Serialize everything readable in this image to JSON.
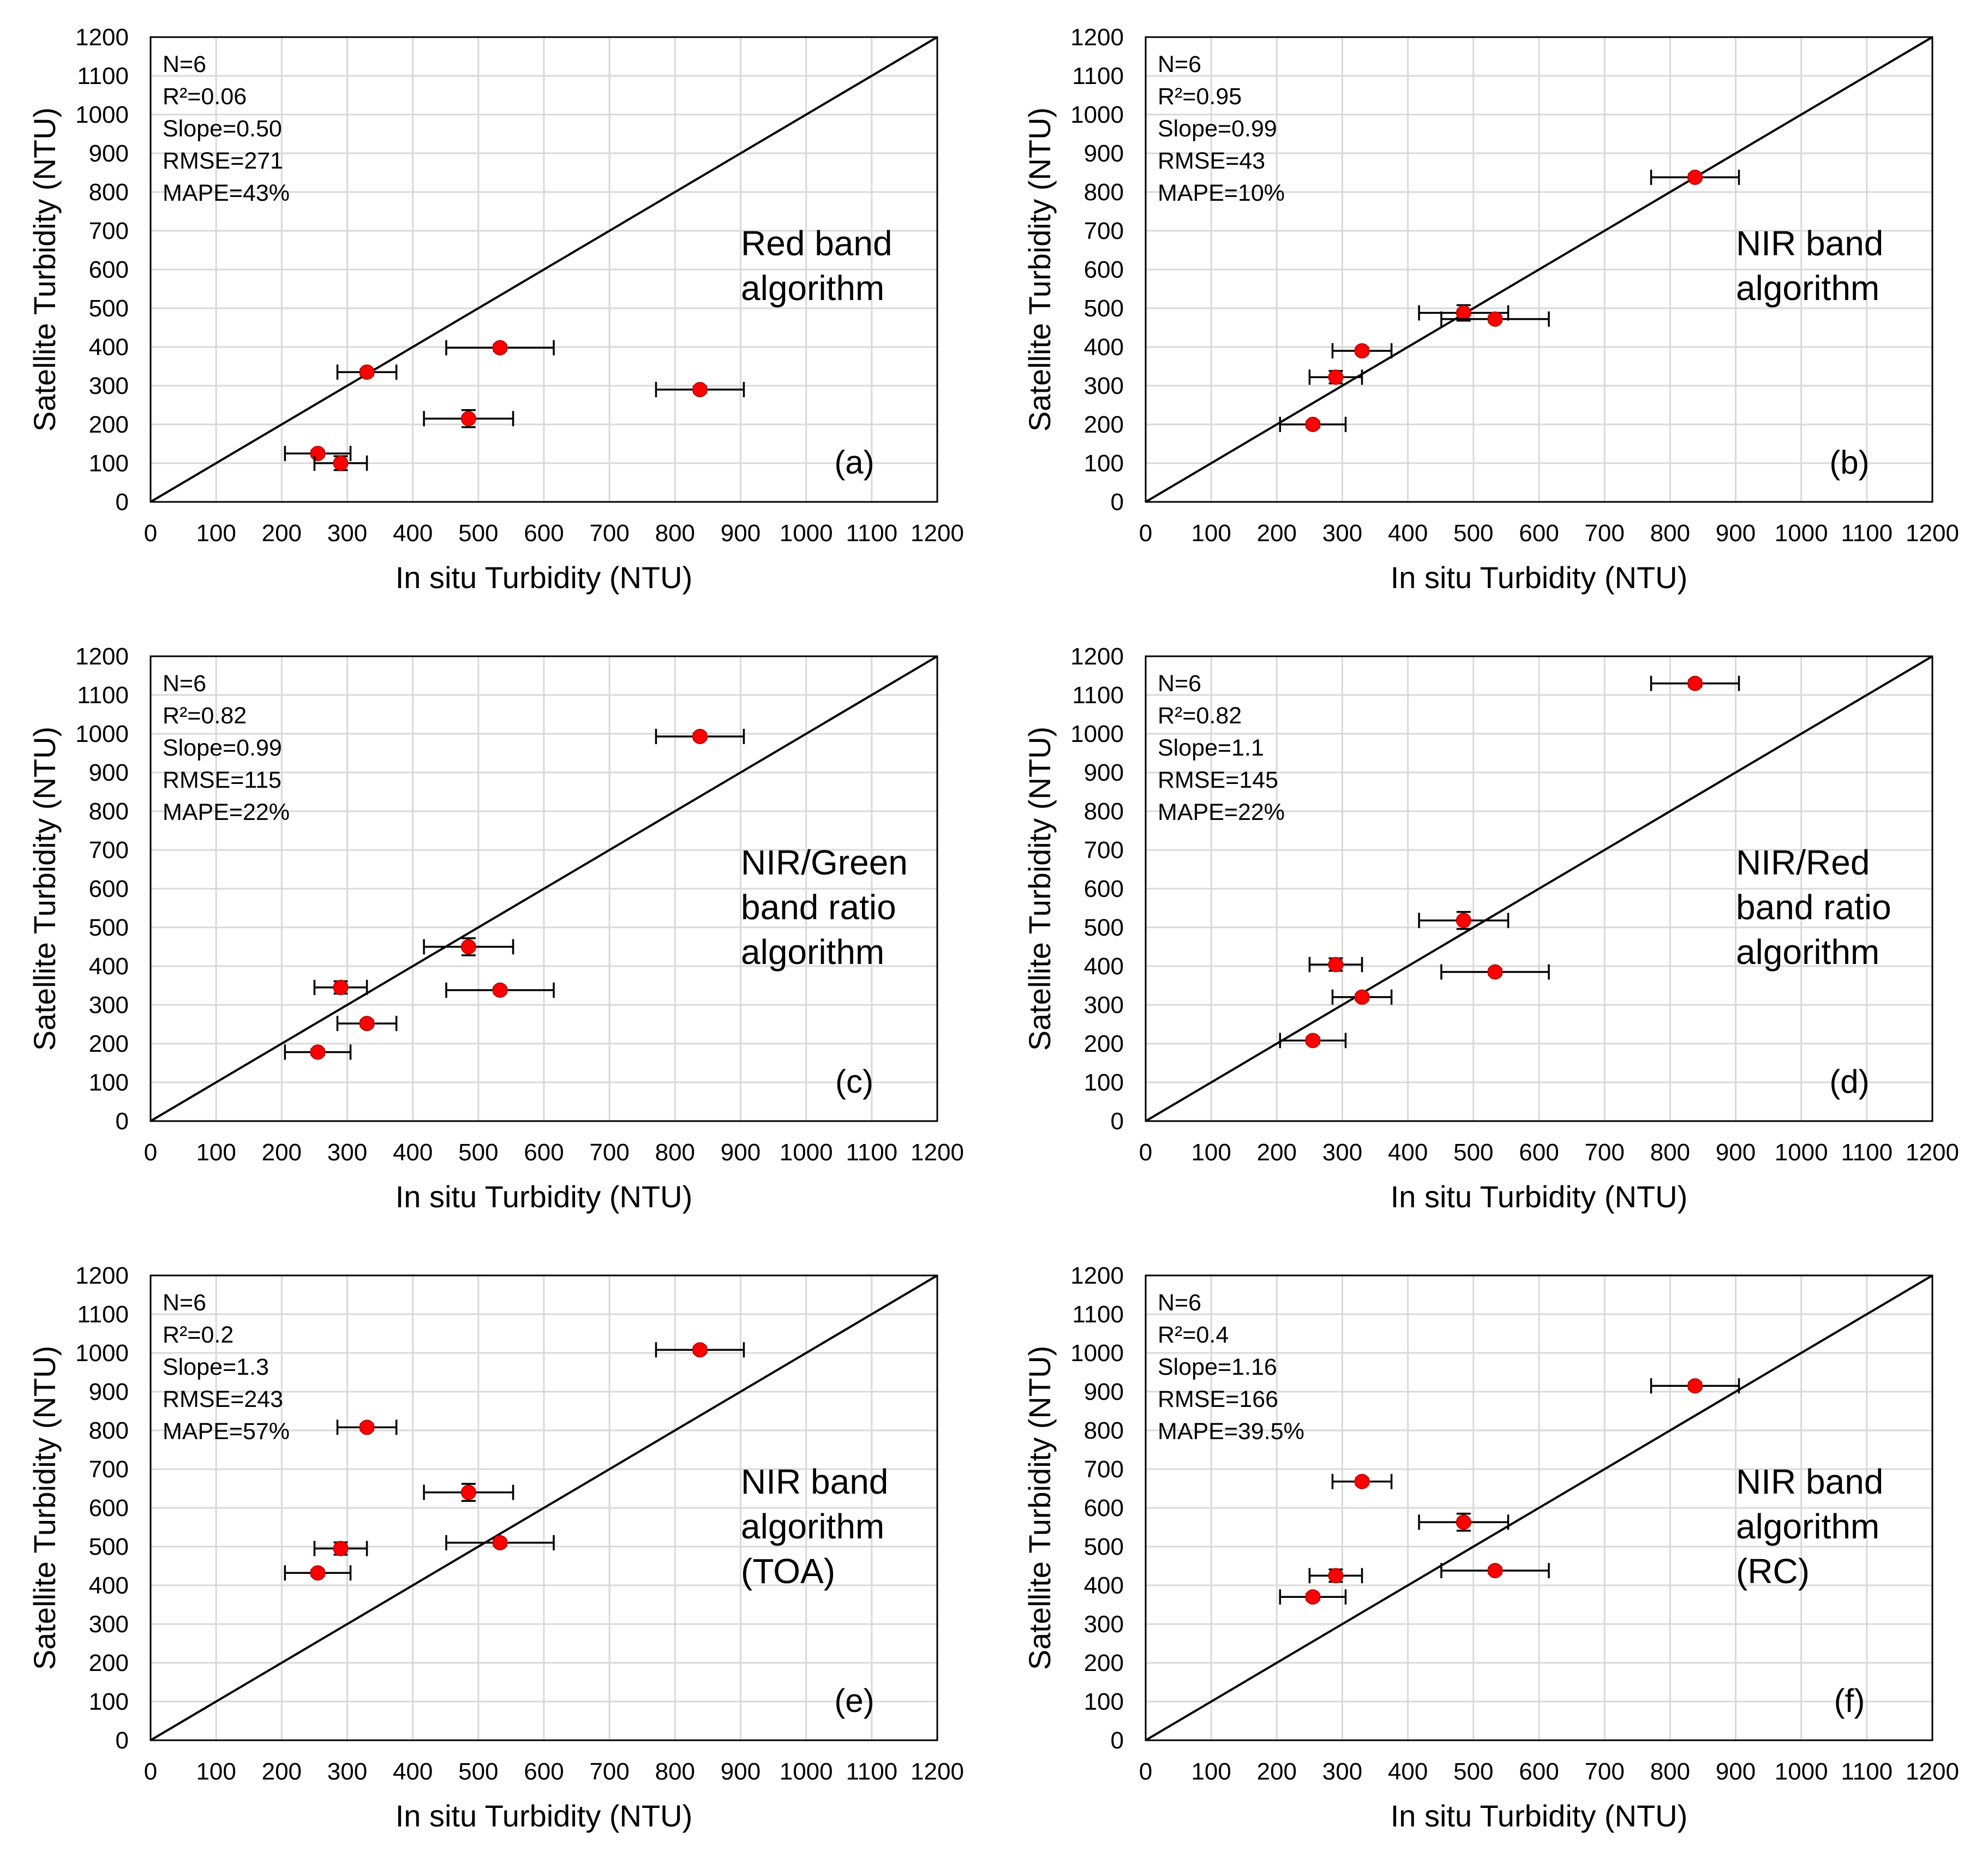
{
  "chart_data": [
    {
      "type": "scatter",
      "panel": "(a)",
      "xlabel": "In situ Turbidity (NTU)",
      "ylabel": "Satellite Turbidity (NTU)",
      "xlim": [
        0,
        1200
      ],
      "ylim": [
        0,
        1200
      ],
      "xticks": [
        0,
        100,
        200,
        300,
        400,
        500,
        600,
        700,
        800,
        900,
        1000,
        1100,
        1200
      ],
      "yticks": [
        0,
        100,
        200,
        300,
        400,
        500,
        600,
        700,
        800,
        900,
        1000,
        1100,
        1200
      ],
      "grid": true,
      "reference_line": "1:1",
      "stats": [
        "N=6",
        "R²=0.06",
        "Slope=0.50",
        "RMSE=271",
        "MAPE=43%"
      ],
      "label_lines": [
        "Red band",
        "algorithm"
      ],
      "points": [
        {
          "x": 255,
          "y": 125,
          "x_err": 50,
          "y_err": 8
        },
        {
          "x": 290,
          "y": 100,
          "x_err": 40,
          "y_err": 18
        },
        {
          "x": 330,
          "y": 335,
          "x_err": 45,
          "y_err": 8
        },
        {
          "x": 485,
          "y": 215,
          "x_err": 68,
          "y_err": 22
        },
        {
          "x": 533,
          "y": 398,
          "x_err": 82,
          "y_err": 8
        },
        {
          "x": 838,
          "y": 290,
          "x_err": 67,
          "y_err": 8
        }
      ]
    },
    {
      "type": "scatter",
      "panel": "(b)",
      "xlabel": "In situ Turbidity (NTU)",
      "ylabel": "Satellite Turbidity (NTU)",
      "xlim": [
        0,
        1200
      ],
      "ylim": [
        0,
        1200
      ],
      "xticks": [
        0,
        100,
        200,
        300,
        400,
        500,
        600,
        700,
        800,
        900,
        1000,
        1100,
        1200
      ],
      "yticks": [
        0,
        100,
        200,
        300,
        400,
        500,
        600,
        700,
        800,
        900,
        1000,
        1100,
        1200
      ],
      "grid": true,
      "reference_line": "1:1",
      "stats": [
        "N=6",
        "R²=0.95",
        "Slope=0.99",
        "RMSE=43",
        "MAPE=10%"
      ],
      "label_lines": [
        "NIR band",
        "algorithm"
      ],
      "points": [
        {
          "x": 255,
          "y": 200,
          "x_err": 50,
          "y_err": 8
        },
        {
          "x": 290,
          "y": 322,
          "x_err": 40,
          "y_err": 16
        },
        {
          "x": 330,
          "y": 390,
          "x_err": 45,
          "y_err": 8
        },
        {
          "x": 485,
          "y": 488,
          "x_err": 68,
          "y_err": 20
        },
        {
          "x": 533,
          "y": 472,
          "x_err": 82,
          "y_err": 8
        },
        {
          "x": 838,
          "y": 838,
          "x_err": 67,
          "y_err": 8
        }
      ]
    },
    {
      "type": "scatter",
      "panel": "(c)",
      "xlabel": "In situ Turbidity (NTU)",
      "ylabel": "Satellite Turbidity (NTU)",
      "xlim": [
        0,
        1200
      ],
      "ylim": [
        0,
        1200
      ],
      "xticks": [
        0,
        100,
        200,
        300,
        400,
        500,
        600,
        700,
        800,
        900,
        1000,
        1100,
        1200
      ],
      "yticks": [
        0,
        100,
        200,
        300,
        400,
        500,
        600,
        700,
        800,
        900,
        1000,
        1100,
        1200
      ],
      "grid": true,
      "reference_line": "1:1",
      "stats": [
        "N=6",
        "R²=0.82",
        "Slope=0.99",
        "RMSE=115",
        "MAPE=22%"
      ],
      "label_lines": [
        "NIR/Green",
        "band ratio",
        "algorithm"
      ],
      "points": [
        {
          "x": 255,
          "y": 178,
          "x_err": 50,
          "y_err": 8
        },
        {
          "x": 290,
          "y": 345,
          "x_err": 40,
          "y_err": 16
        },
        {
          "x": 330,
          "y": 252,
          "x_err": 45,
          "y_err": 8
        },
        {
          "x": 485,
          "y": 450,
          "x_err": 68,
          "y_err": 22
        },
        {
          "x": 533,
          "y": 338,
          "x_err": 82,
          "y_err": 8
        },
        {
          "x": 838,
          "y": 993,
          "x_err": 67,
          "y_err": 8
        }
      ]
    },
    {
      "type": "scatter",
      "panel": "(d)",
      "xlabel": "In situ Turbidity (NTU)",
      "ylabel": "Satellite Turbidity (NTU)",
      "xlim": [
        0,
        1200
      ],
      "ylim": [
        0,
        1200
      ],
      "xticks": [
        0,
        100,
        200,
        300,
        400,
        500,
        600,
        700,
        800,
        900,
        1000,
        1100,
        1200
      ],
      "yticks": [
        0,
        100,
        200,
        300,
        400,
        500,
        600,
        700,
        800,
        900,
        1000,
        1100,
        1200
      ],
      "grid": true,
      "reference_line": "1:1",
      "stats": [
        "N=6",
        "R²=0.82",
        "Slope=1.1",
        "RMSE=145",
        "MAPE=22%"
      ],
      "label_lines": [
        "NIR/Red",
        "band ratio",
        "algorithm"
      ],
      "points": [
        {
          "x": 255,
          "y": 208,
          "x_err": 50,
          "y_err": 8
        },
        {
          "x": 290,
          "y": 404,
          "x_err": 40,
          "y_err": 16
        },
        {
          "x": 330,
          "y": 320,
          "x_err": 45,
          "y_err": 8
        },
        {
          "x": 485,
          "y": 518,
          "x_err": 68,
          "y_err": 22
        },
        {
          "x": 533,
          "y": 385,
          "x_err": 82,
          "y_err": 8
        },
        {
          "x": 838,
          "y": 1130,
          "x_err": 67,
          "y_err": 8
        }
      ]
    },
    {
      "type": "scatter",
      "panel": "(e)",
      "xlabel": "In situ Turbidity (NTU)",
      "ylabel": "Satellite Turbidity (NTU)",
      "xlim": [
        0,
        1200
      ],
      "ylim": [
        0,
        1200
      ],
      "xticks": [
        0,
        100,
        200,
        300,
        400,
        500,
        600,
        700,
        800,
        900,
        1000,
        1100,
        1200
      ],
      "yticks": [
        0,
        100,
        200,
        300,
        400,
        500,
        600,
        700,
        800,
        900,
        1000,
        1100,
        1200
      ],
      "grid": true,
      "reference_line": "1:1",
      "stats": [
        "N=6",
        "R²=0.2",
        "Slope=1.3",
        "RMSE=243",
        "MAPE=57%"
      ],
      "label_lines": [
        "NIR band",
        "algorithm",
        "(TOA)"
      ],
      "points": [
        {
          "x": 255,
          "y": 432,
          "x_err": 50,
          "y_err": 8
        },
        {
          "x": 290,
          "y": 495,
          "x_err": 40,
          "y_err": 16
        },
        {
          "x": 330,
          "y": 808,
          "x_err": 45,
          "y_err": 8
        },
        {
          "x": 485,
          "y": 640,
          "x_err": 68,
          "y_err": 22
        },
        {
          "x": 533,
          "y": 510,
          "x_err": 82,
          "y_err": 8
        },
        {
          "x": 838,
          "y": 1008,
          "x_err": 67,
          "y_err": 8
        }
      ]
    },
    {
      "type": "scatter",
      "panel": "(f)",
      "xlabel": "In situ Turbidity (NTU)",
      "ylabel": "Satellite Turbidity (NTU)",
      "xlim": [
        0,
        1200
      ],
      "ylim": [
        0,
        1200
      ],
      "xticks": [
        0,
        100,
        200,
        300,
        400,
        500,
        600,
        700,
        800,
        900,
        1000,
        1100,
        1200
      ],
      "yticks": [
        0,
        100,
        200,
        300,
        400,
        500,
        600,
        700,
        800,
        900,
        1000,
        1100,
        1200
      ],
      "grid": true,
      "reference_line": "1:1",
      "stats": [
        "N=6",
        "R²=0.4",
        "Slope=1.16",
        "RMSE=166",
        "MAPE=39.5%"
      ],
      "label_lines": [
        "NIR band",
        "algorithm",
        "(RC)"
      ],
      "points": [
        {
          "x": 255,
          "y": 370,
          "x_err": 50,
          "y_err": 8
        },
        {
          "x": 290,
          "y": 425,
          "x_err": 40,
          "y_err": 16
        },
        {
          "x": 330,
          "y": 668,
          "x_err": 45,
          "y_err": 8
        },
        {
          "x": 485,
          "y": 563,
          "x_err": 68,
          "y_err": 22
        },
        {
          "x": 533,
          "y": 438,
          "x_err": 82,
          "y_err": 8
        },
        {
          "x": 838,
          "y": 915,
          "x_err": 67,
          "y_err": 8
        }
      ]
    }
  ],
  "colors": {
    "point_fill": "#ff0000",
    "point_stroke": "#c00000",
    "grid": "#d9d9d9",
    "axis": "#000000"
  }
}
